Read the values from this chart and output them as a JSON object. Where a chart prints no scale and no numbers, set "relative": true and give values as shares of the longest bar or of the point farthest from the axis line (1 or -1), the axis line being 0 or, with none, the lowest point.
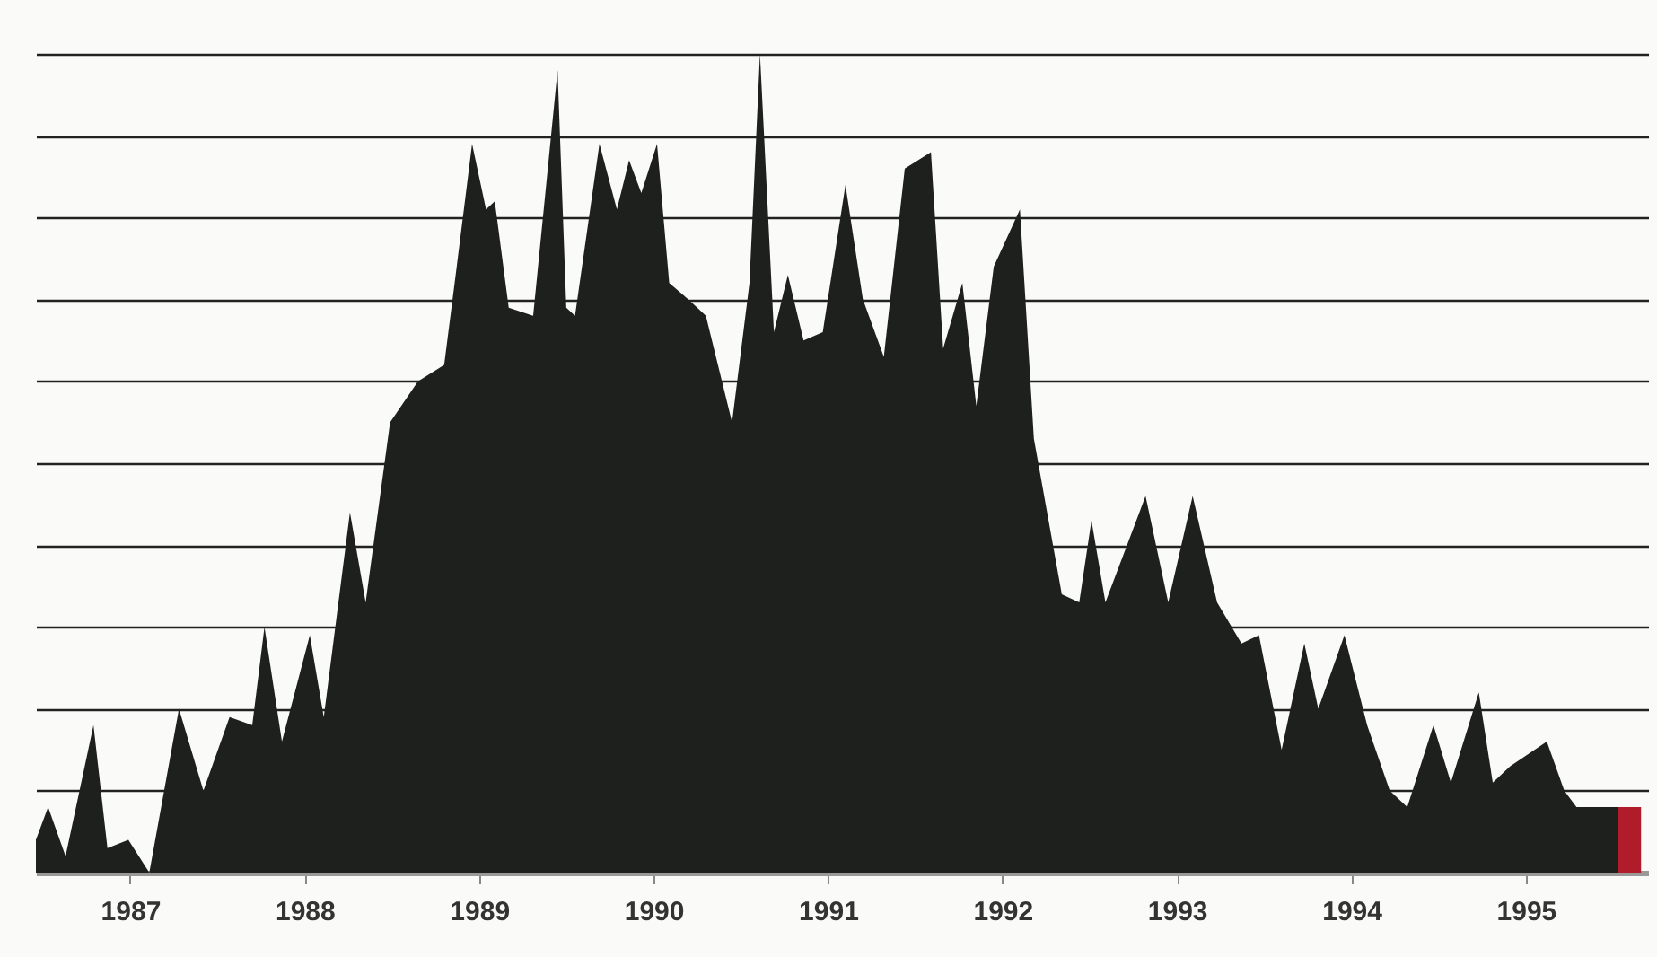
{
  "chart_data": {
    "type": "area",
    "relative": true,
    "grid": "y",
    "xlim": [
      1986.96,
      1996.2
    ],
    "xticks": [
      {
        "value": 1987.5,
        "label": "1987"
      },
      {
        "value": 1988.5,
        "label": "1988"
      },
      {
        "value": 1989.5,
        "label": "1989"
      },
      {
        "value": 1990.5,
        "label": "1990"
      },
      {
        "value": 1991.5,
        "label": "1991"
      },
      {
        "value": 1992.5,
        "label": "1992"
      },
      {
        "value": 1993.5,
        "label": "1993"
      },
      {
        "value": 1994.5,
        "label": "1994"
      },
      {
        "value": 1995.5,
        "label": "1995"
      }
    ],
    "series": [
      {
        "color": "#1e201e",
        "x": [
          1986.96,
          1987.03,
          1987.13,
          1987.29,
          1987.37,
          1987.49,
          1987.61,
          1987.78,
          1987.92,
          1988.07,
          1988.2,
          1988.27,
          1988.37,
          1988.53,
          1988.61,
          1988.76,
          1988.85,
          1988.99,
          1989.15,
          1989.3,
          1989.36,
          1989.46,
          1989.54,
          1989.59,
          1989.67,
          1989.81,
          1989.95,
          1990.0,
          1990.05,
          1990.19,
          1990.29,
          1990.36,
          1990.43,
          1990.52,
          1990.59,
          1990.7,
          1990.8,
          1990.95,
          1991.05,
          1991.11,
          1991.19,
          1991.27,
          1991.36,
          1991.47,
          1991.6,
          1991.7,
          1991.82,
          1991.94,
          1992.09,
          1992.16,
          1992.27,
          1992.35,
          1992.45,
          1992.6,
          1992.68,
          1992.84,
          1992.94,
          1993.01,
          1993.09,
          1993.32,
          1993.45,
          1993.59,
          1993.73,
          1993.87,
          1993.97,
          1994.1,
          1994.23,
          1994.31,
          1994.46,
          1994.59,
          1994.72,
          1994.82,
          1994.97,
          1995.07,
          1995.23,
          1995.31,
          1995.41,
          1995.62,
          1995.72,
          1995.79,
          1995.96,
          1996.03
        ],
        "values": [
          0.04,
          0.08,
          0.02,
          0.18,
          0.03,
          0.04,
          0.0,
          0.2,
          0.1,
          0.19,
          0.18,
          0.3,
          0.16,
          0.29,
          0.19,
          0.44,
          0.33,
          0.55,
          0.6,
          0.62,
          0.72,
          0.89,
          0.81,
          0.82,
          0.69,
          0.68,
          0.98,
          0.69,
          0.68,
          0.89,
          0.81,
          0.87,
          0.83,
          0.89,
          0.72,
          0.7,
          0.68,
          0.55,
          0.72,
          1.0,
          0.66,
          0.73,
          0.65,
          0.66,
          0.84,
          0.7,
          0.63,
          0.86,
          0.88,
          0.64,
          0.72,
          0.57,
          0.74,
          0.81,
          0.53,
          0.34,
          0.33,
          0.43,
          0.33,
          0.46,
          0.33,
          0.46,
          0.33,
          0.28,
          0.29,
          0.15,
          0.28,
          0.2,
          0.29,
          0.18,
          0.1,
          0.08,
          0.18,
          0.11,
          0.22,
          0.11,
          0.13,
          0.16,
          0.1,
          0.08,
          0.08,
          0.08
        ]
      },
      {
        "color": "#b01c2a",
        "x": [
          1996.03,
          1996.08,
          1996.16
        ],
        "values": [
          0.08,
          0.08,
          0.08
        ]
      }
    ]
  }
}
